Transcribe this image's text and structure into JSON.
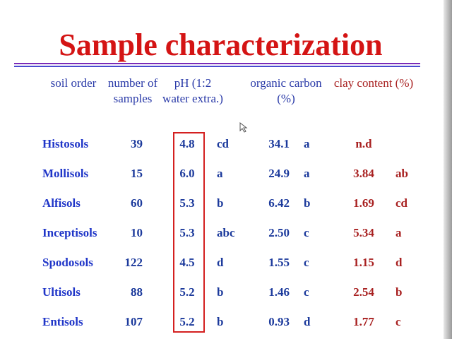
{
  "title": "Sample characterization",
  "table": {
    "headers": [
      "soil order",
      "number of samples",
      "pH (1:2 water extra.)",
      "organic carbon (%)",
      "clay content (%)"
    ],
    "rows": [
      {
        "order": "Histosols",
        "samples": 39,
        "ph": "4.8",
        "ph_group": "cd",
        "oc": "34.1",
        "oc_group": "a",
        "clay": "n.d"
      },
      {
        "order": "Mollisols",
        "samples": 15,
        "ph": "6.0",
        "ph_group": "a",
        "oc": "24.9",
        "oc_group": "a",
        "clay": "3.84",
        "clay_group": "ab"
      },
      {
        "order": "Alfisols",
        "samples": 60,
        "ph": "5.3",
        "ph_group": "b",
        "oc": "6.42",
        "oc_group": "b",
        "clay": "1.69",
        "clay_group": "cd"
      },
      {
        "order": "Inceptisols",
        "samples": 10,
        "ph": "5.3",
        "ph_group": "abc",
        "oc": "2.50",
        "oc_group": "c",
        "clay": "5.34",
        "clay_group": "a"
      },
      {
        "order": "Spodosols",
        "samples": 122,
        "ph": "4.5",
        "ph_group": "d",
        "oc": "1.55",
        "oc_group": "c",
        "clay": "1.15",
        "clay_group": "d"
      },
      {
        "order": "Ultisols",
        "samples": 88,
        "ph": "5.2",
        "ph_group": "b",
        "oc": "1.46",
        "oc_group": "c",
        "clay": "2.54",
        "clay_group": "b"
      },
      {
        "order": "Entisols",
        "samples": 107,
        "ph": "5.2",
        "ph_group": "b",
        "oc": "0.93",
        "oc_group": "d",
        "clay": "1.77",
        "clay_group": "c"
      }
    ]
  }
}
